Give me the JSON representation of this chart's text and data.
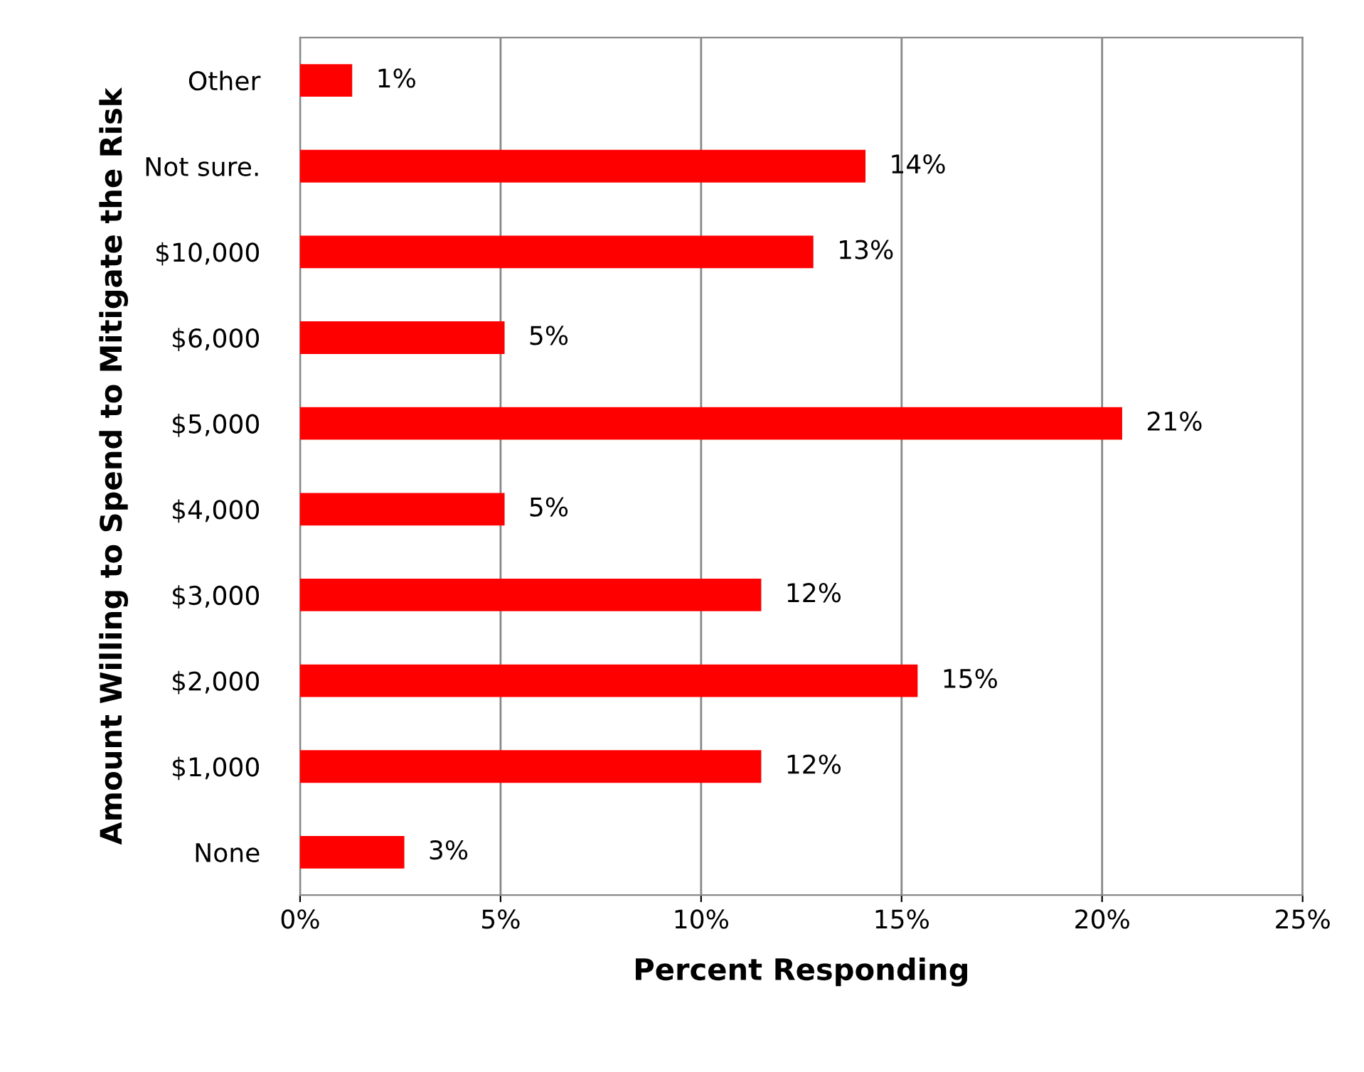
{
  "chart_data": {
    "type": "bar",
    "orientation": "horizontal",
    "xlabel": "Percent Responding",
    "ylabel": "Amount Willing to Spend to Mitigate the Risk",
    "categories": [
      "Other",
      "Not sure.",
      "$10,000",
      "$6,000",
      "$5,000",
      "$4,000",
      "$3,000",
      "$2,000",
      "$1,000",
      "None"
    ],
    "values": [
      1.3,
      14.1,
      12.8,
      5.1,
      20.5,
      5.1,
      11.5,
      15.4,
      11.5,
      2.6
    ],
    "value_labels": [
      "1%",
      "14%",
      "13%",
      "5%",
      "21%",
      "5%",
      "12%",
      "15%",
      "12%",
      "3%"
    ],
    "color": "#ff0000",
    "xlim": [
      0,
      25
    ],
    "xticks": [
      {
        "value": 0,
        "label": "0%"
      },
      {
        "value": 5,
        "label": "5%"
      },
      {
        "value": 10,
        "label": "10%"
      },
      {
        "value": 15,
        "label": "15%"
      },
      {
        "value": 20,
        "label": "20%"
      },
      {
        "value": 25,
        "label": "25%"
      }
    ],
    "grid": "x",
    "legend": false
  }
}
